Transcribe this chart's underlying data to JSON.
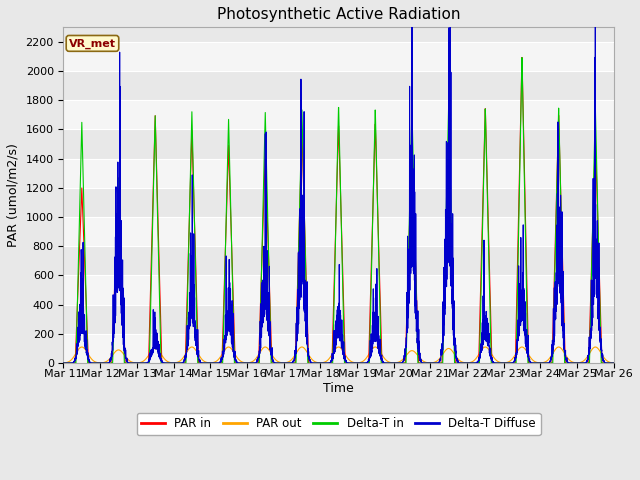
{
  "title": "Photosynthetic Active Radiation",
  "xlabel": "Time",
  "ylabel": "PAR (umol/m2/s)",
  "ylim": [
    0,
    2300
  ],
  "yticks": [
    0,
    200,
    400,
    600,
    800,
    1000,
    1200,
    1400,
    1600,
    1800,
    2000,
    2200
  ],
  "xtick_labels": [
    "Mar 11",
    "Mar 12",
    "Mar 13",
    "Mar 14",
    "Mar 15",
    "Mar 16",
    "Mar 17",
    "Mar 18",
    "Mar 19",
    "Mar 20",
    "Mar 21",
    "Mar 22",
    "Mar 23",
    "Mar 24",
    "Mar 25",
    "Mar 26"
  ],
  "annotation_text": "VR_met",
  "annotation_color": "#8B0000",
  "annotation_bg": "#FFFACD",
  "annotation_border": "#8B6914",
  "colors": {
    "PAR in": "#FF0000",
    "PAR out": "#FFA500",
    "Delta-T in": "#00CC00",
    "Delta-T Diffuse": "#0000CC"
  },
  "bg_color": "#E8E8E8",
  "grid_color": "#FFFFFF",
  "title_fontsize": 11,
  "label_fontsize": 9,
  "tick_fontsize": 8,
  "par_in_peaks": [
    1200,
    1270,
    1700,
    1600,
    1500,
    1450,
    1600,
    1640,
    1650,
    1490,
    1200,
    1750,
    2100,
    1700,
    1550
  ],
  "par_out_peaks": [
    110,
    90,
    100,
    110,
    110,
    110,
    110,
    110,
    110,
    85,
    100,
    110,
    110,
    110,
    110
  ],
  "delta_t_peaks": [
    1650,
    1270,
    1700,
    1730,
    1680,
    1730,
    1750,
    1770,
    1750,
    1750,
    1760,
    1750,
    2100,
    1750,
    1760
  ],
  "delta_diff_peaks": [
    280,
    700,
    130,
    390,
    310,
    470,
    640,
    230,
    200,
    900,
    950,
    220,
    370,
    650,
    640
  ]
}
